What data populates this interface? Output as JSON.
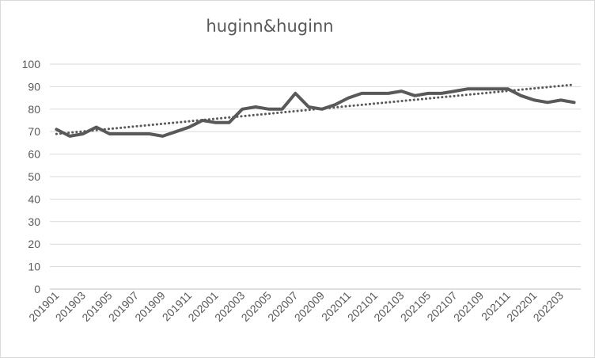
{
  "chart_data": {
    "type": "line",
    "title": "huginn&huginn",
    "xlabel": "",
    "ylabel": "",
    "ylim": [
      0,
      100
    ],
    "yticks": [
      0,
      10,
      20,
      30,
      40,
      50,
      60,
      70,
      80,
      90,
      100
    ],
    "grid": true,
    "legend": "none",
    "x": [
      "201901",
      "201902",
      "201903",
      "201904",
      "201905",
      "201906",
      "201907",
      "201908",
      "201909",
      "201910",
      "201911",
      "201912",
      "202001",
      "202002",
      "202003",
      "202004",
      "202005",
      "202006",
      "202007",
      "202008",
      "202009",
      "202010",
      "202011",
      "202012",
      "202101",
      "202102",
      "202103",
      "202104",
      "202105",
      "202106",
      "202107",
      "202108",
      "202109",
      "202110",
      "202111",
      "202112",
      "202201",
      "202202",
      "202203",
      "202204"
    ],
    "x_tick_labels": [
      "201901",
      "201903",
      "201905",
      "201907",
      "201909",
      "201911",
      "202001",
      "202003",
      "202005",
      "202007",
      "202009",
      "202011",
      "202101",
      "202103",
      "202105",
      "202107",
      "202109",
      "202111",
      "202201",
      "202203"
    ],
    "series": [
      {
        "values": [
          71,
          68,
          69,
          72,
          69,
          69,
          69,
          69,
          68,
          70,
          72,
          75,
          74,
          74,
          80,
          81,
          80,
          80,
          87,
          81,
          80,
          82,
          85,
          87,
          87,
          87,
          88,
          86,
          87,
          87,
          88,
          89,
          89,
          89,
          89,
          86,
          84,
          83,
          84,
          83
        ],
        "color": "#595959",
        "style": "solid"
      }
    ],
    "trendline": {
      "type": "linear",
      "style": "dotted",
      "color": "#595959"
    }
  }
}
